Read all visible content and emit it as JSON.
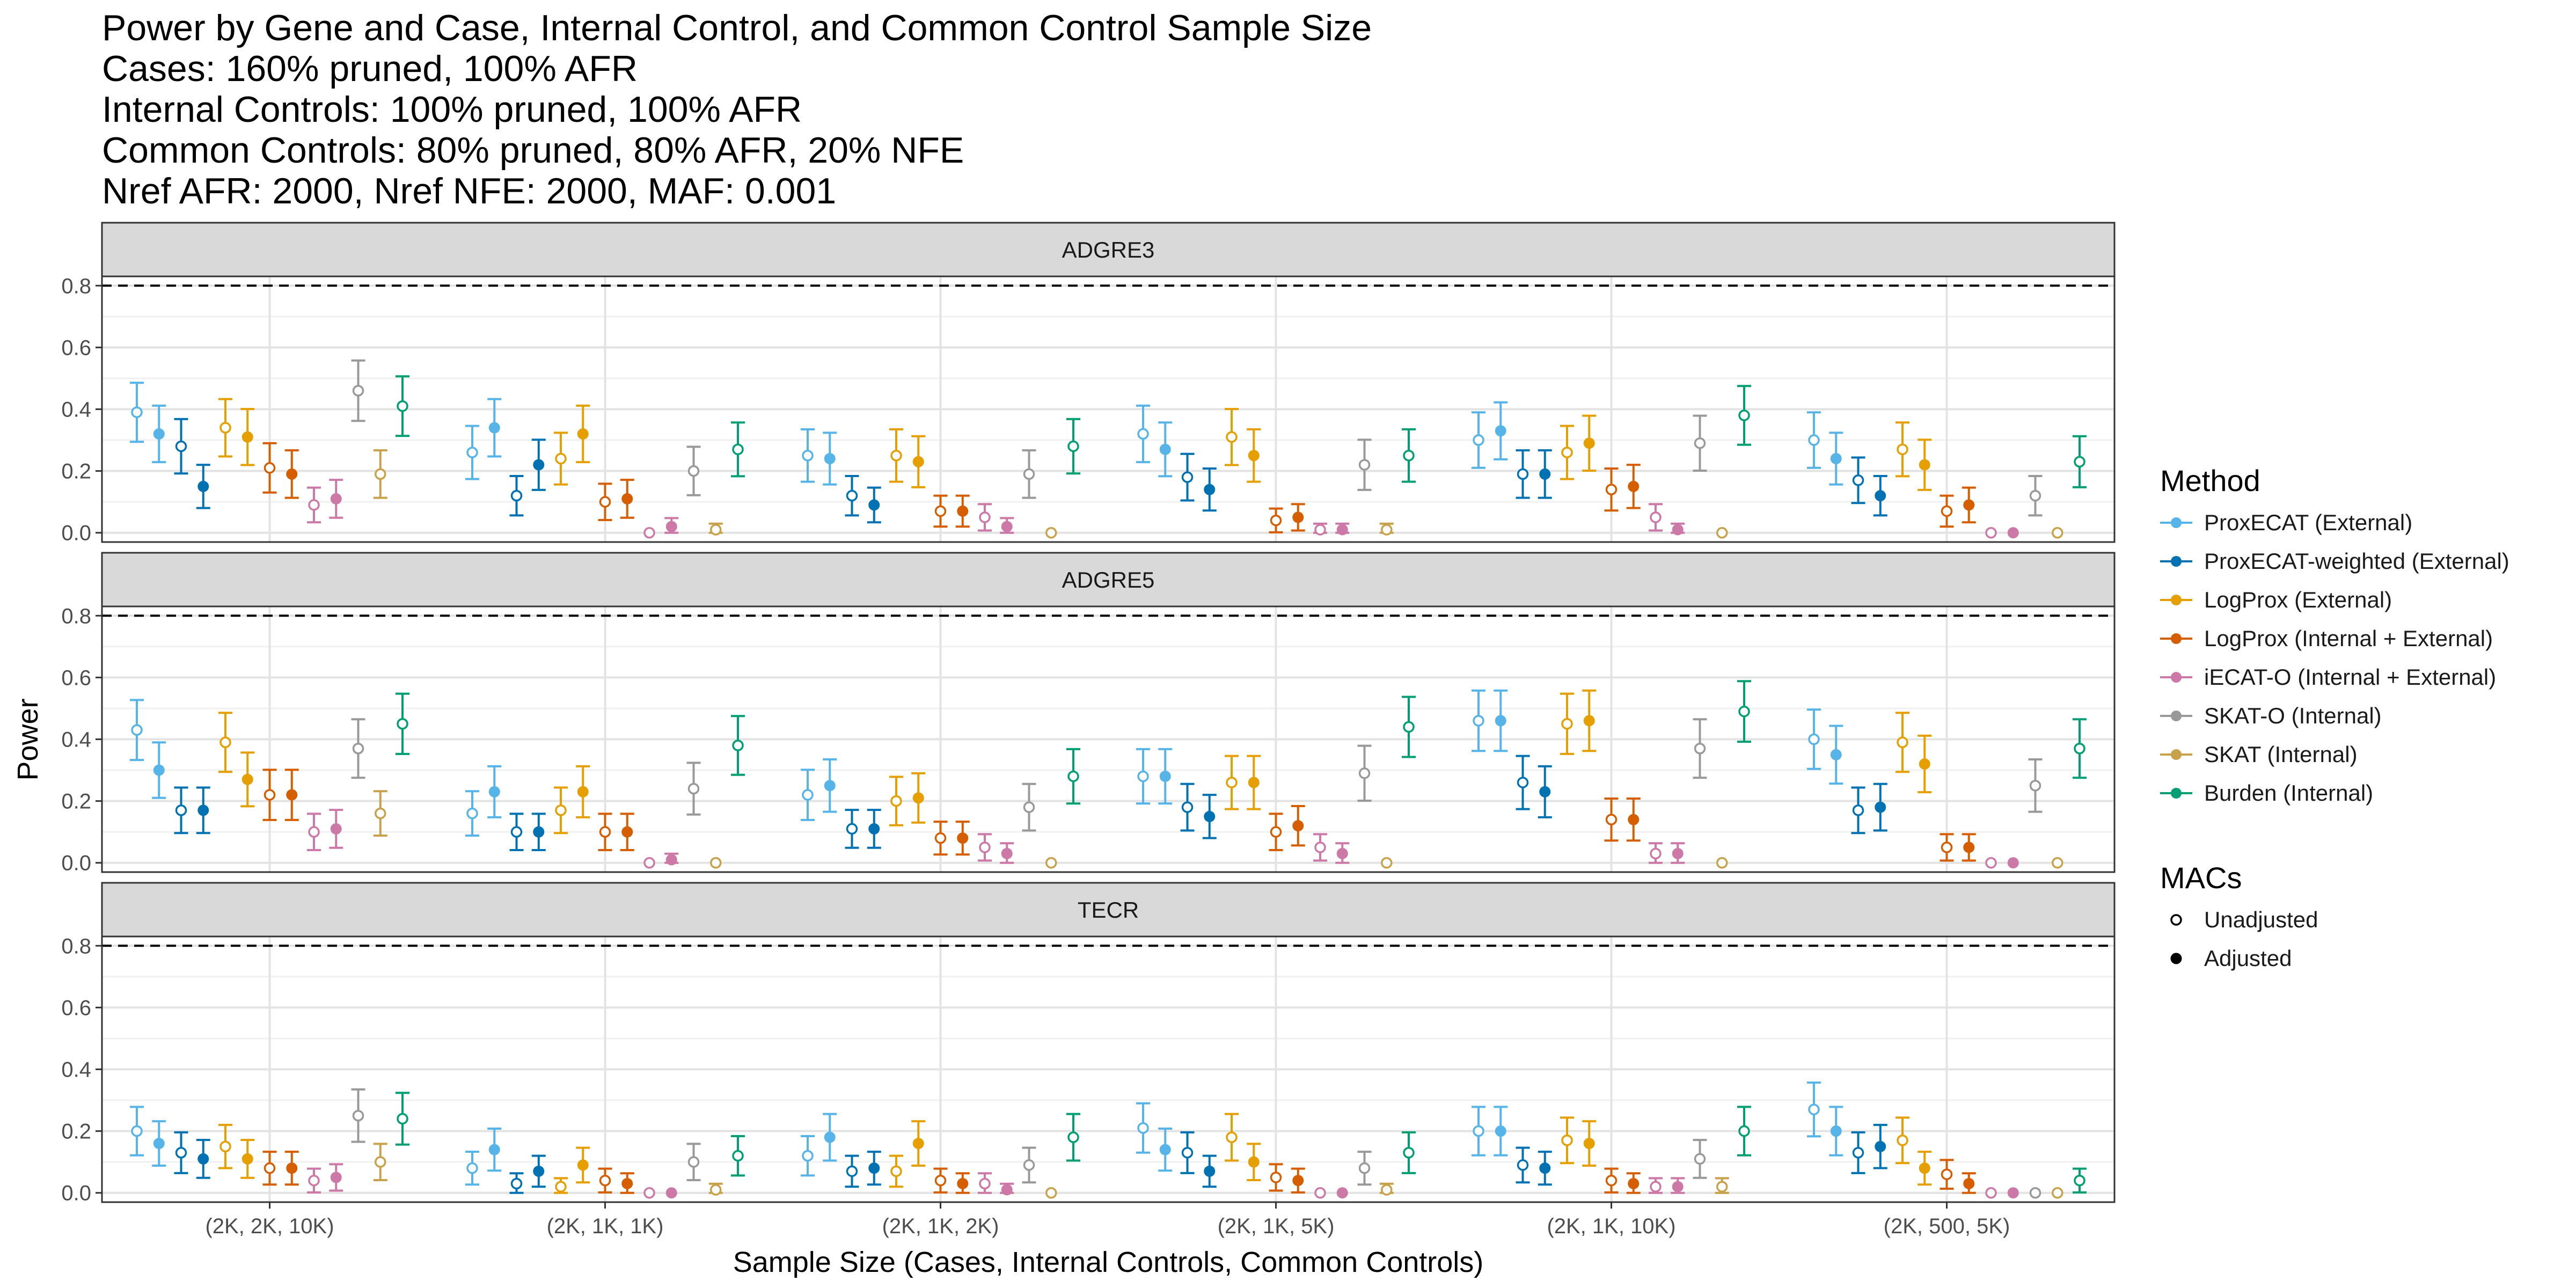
{
  "title_lines": [
    "Power by Gene and Case, Internal Control, and Common Control Sample Size",
    "Cases: 160% pruned, 100% AFR",
    "Internal Controls: 100% pruned, 100% AFR",
    "Common Controls: 80% pruned, 80% AFR, 20% NFE",
    "Nref AFR: 2000, Nref NFE: 2000, MAF: 0.001"
  ],
  "legend": {
    "method_title": "Method",
    "shape_title": "MACs",
    "methods": [
      {
        "name": "ProxECAT (External)",
        "color": "#56B4E9"
      },
      {
        "name": "ProxECAT-weighted (External)",
        "color": "#0072B2"
      },
      {
        "name": "LogProx (External)",
        "color": "#E69F00"
      },
      {
        "name": "LogProx (Internal + External)",
        "color": "#D55E00"
      },
      {
        "name": "iECAT-O (Internal + External)",
        "color": "#CC79A7"
      },
      {
        "name": "SKAT-O (Internal)",
        "color": "#999999"
      },
      {
        "name": "SKAT (Internal)",
        "color": "#C8A24B"
      },
      {
        "name": "Burden (Internal)",
        "color": "#009E73"
      }
    ],
    "shapes": [
      "Unadjusted",
      "Adjusted"
    ]
  },
  "chart_data": {
    "type": "scatter",
    "subtype": "point-with-errorbars",
    "xlabel": "Sample Size (Cases, Internal Controls, Common Controls)",
    "ylabel": "Power",
    "categories": [
      "(2K, 2K, 10K)",
      "(2K, 1K, 1K)",
      "(2K, 1K, 2K)",
      "(2K, 1K, 5K)",
      "(2K, 1K, 10K)",
      "(2K, 500, 5K)"
    ],
    "ylim": [
      -0.03,
      0.83
    ],
    "yticks": [
      "0.0",
      "0.2",
      "0.4",
      "0.6",
      "0.8"
    ],
    "reference_line": 0.8,
    "grid": true,
    "facets": [
      {
        "name": "ADGRE3",
        "values": {
          "ProxECAT (External)": {
            "Unadjusted": [
              0.39,
              0.26,
              0.25,
              0.32,
              0.3,
              0.3
            ],
            "Adjusted": [
              0.32,
              0.34,
              0.24,
              0.27,
              0.33,
              0.24
            ]
          },
          "ProxECAT-weighted (External)": {
            "Unadjusted": [
              0.28,
              0.12,
              0.12,
              0.18,
              0.19,
              0.17
            ],
            "Adjusted": [
              0.15,
              0.22,
              0.09,
              0.14,
              0.19,
              0.12
            ]
          },
          "LogProx (External)": {
            "Unadjusted": [
              0.34,
              0.24,
              0.25,
              0.31,
              0.26,
              0.27
            ],
            "Adjusted": [
              0.31,
              0.32,
              0.23,
              0.25,
              0.29,
              0.22
            ]
          },
          "LogProx (Internal + External)": {
            "Unadjusted": [
              0.21,
              0.1,
              0.07,
              0.04,
              0.14,
              0.07
            ],
            "Adjusted": [
              0.19,
              0.11,
              0.07,
              0.05,
              0.15,
              0.09
            ]
          },
          "iECAT-O (Internal + External)": {
            "Unadjusted": [
              0.09,
              0.0,
              0.05,
              0.01,
              0.05,
              0.0
            ],
            "Adjusted": [
              0.11,
              0.02,
              0.02,
              0.01,
              0.01,
              0.0
            ]
          },
          "SKAT-O (Internal)": {
            "Unadjusted": [
              0.46,
              0.2,
              0.19,
              0.22,
              0.29,
              0.12
            ],
            "Adjusted": null
          },
          "SKAT (Internal)": {
            "Unadjusted": [
              0.19,
              0.01,
              0.0,
              0.01,
              0.0,
              0.0
            ],
            "Adjusted": null
          },
          "Burden (Internal)": {
            "Unadjusted": [
              0.41,
              0.27,
              0.28,
              0.25,
              0.38,
              0.23
            ],
            "Adjusted": null
          }
        }
      },
      {
        "name": "ADGRE5",
        "values": {
          "ProxECAT (External)": {
            "Unadjusted": [
              0.43,
              0.16,
              0.22,
              0.28,
              0.46,
              0.4
            ],
            "Adjusted": [
              0.3,
              0.23,
              0.25,
              0.28,
              0.46,
              0.35
            ]
          },
          "ProxECAT-weighted (External)": {
            "Unadjusted": [
              0.17,
              0.1,
              0.11,
              0.18,
              0.26,
              0.17
            ],
            "Adjusted": [
              0.17,
              0.1,
              0.11,
              0.15,
              0.23,
              0.18
            ]
          },
          "LogProx (External)": {
            "Unadjusted": [
              0.39,
              0.17,
              0.2,
              0.26,
              0.45,
              0.39
            ],
            "Adjusted": [
              0.27,
              0.23,
              0.21,
              0.26,
              0.46,
              0.32
            ]
          },
          "LogProx (Internal + External)": {
            "Unadjusted": [
              0.22,
              0.1,
              0.08,
              0.1,
              0.14,
              0.05
            ],
            "Adjusted": [
              0.22,
              0.1,
              0.08,
              0.12,
              0.14,
              0.05
            ]
          },
          "iECAT-O (Internal + External)": {
            "Unadjusted": [
              0.1,
              0.0,
              0.05,
              0.05,
              0.03,
              0.0
            ],
            "Adjusted": [
              0.11,
              0.01,
              0.03,
              0.03,
              0.03,
              0.0
            ]
          },
          "SKAT-O (Internal)": {
            "Unadjusted": [
              0.37,
              0.24,
              0.18,
              0.29,
              0.37,
              0.25
            ],
            "Adjusted": null
          },
          "SKAT (Internal)": {
            "Unadjusted": [
              0.16,
              0.0,
              0.0,
              0.0,
              0.0,
              0.0
            ],
            "Adjusted": null
          },
          "Burden (Internal)": {
            "Unadjusted": [
              0.45,
              0.38,
              0.28,
              0.44,
              0.49,
              0.37
            ],
            "Adjusted": null
          }
        }
      },
      {
        "name": "TECR",
        "values": {
          "ProxECAT (External)": {
            "Unadjusted": [
              0.2,
              0.08,
              0.12,
              0.21,
              0.2,
              0.27
            ],
            "Adjusted": [
              0.16,
              0.14,
              0.18,
              0.14,
              0.2,
              0.2
            ]
          },
          "ProxECAT-weighted (External)": {
            "Unadjusted": [
              0.13,
              0.03,
              0.07,
              0.13,
              0.09,
              0.13
            ],
            "Adjusted": [
              0.11,
              0.07,
              0.08,
              0.07,
              0.08,
              0.15
            ]
          },
          "LogProx (External)": {
            "Unadjusted": [
              0.15,
              0.02,
              0.07,
              0.18,
              0.17,
              0.17
            ],
            "Adjusted": [
              0.11,
              0.09,
              0.16,
              0.1,
              0.16,
              0.08
            ]
          },
          "LogProx (Internal + External)": {
            "Unadjusted": [
              0.08,
              0.04,
              0.04,
              0.05,
              0.04,
              0.06
            ],
            "Adjusted": [
              0.08,
              0.03,
              0.03,
              0.04,
              0.03,
              0.03
            ]
          },
          "iECAT-O (Internal + External)": {
            "Unadjusted": [
              0.04,
              0.0,
              0.03,
              0.0,
              0.02,
              0.0
            ],
            "Adjusted": [
              0.05,
              0.0,
              0.01,
              0.0,
              0.02,
              0.0
            ]
          },
          "SKAT-O (Internal)": {
            "Unadjusted": [
              0.25,
              0.1,
              0.09,
              0.08,
              0.11,
              0.0
            ],
            "Adjusted": null
          },
          "SKAT (Internal)": {
            "Unadjusted": [
              0.1,
              0.01,
              0.0,
              0.01,
              0.02,
              0.0
            ],
            "Adjusted": null
          },
          "Burden (Internal)": {
            "Unadjusted": [
              0.24,
              0.12,
              0.18,
              0.13,
              0.2,
              0.04
            ],
            "Adjusted": null
          }
        }
      }
    ]
  }
}
